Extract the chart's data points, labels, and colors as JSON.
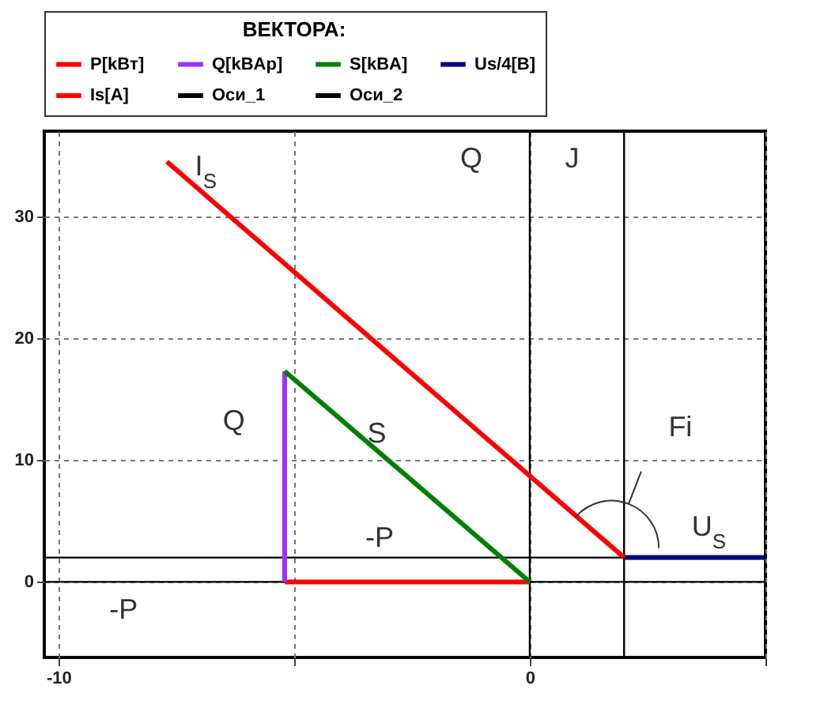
{
  "chart_data": {
    "type": "line",
    "legend_title": "ВЕКТОРА:",
    "xlim": [
      -10.3,
      5
    ],
    "ylim": [
      -6.2,
      37
    ],
    "xticks": [
      -10,
      {
        "value": -5,
        "label": null
      },
      0,
      {
        "value": 5,
        "label": null
      }
    ],
    "yticks": [
      0,
      10,
      20,
      30
    ],
    "grid": true,
    "legend": "top",
    "series": [
      {
        "name": "P[kBт]",
        "color": "#ff0000",
        "x": [
          -5.2,
          0
        ],
        "values": [
          0,
          0
        ]
      },
      {
        "name": "Q[kBAp]",
        "color": "#9933ff",
        "x": [
          -5.2,
          -5.2
        ],
        "values": [
          0,
          17.3
        ]
      },
      {
        "name": "S[kBA]",
        "color": "#008000",
        "x": [
          -5.2,
          0
        ],
        "values": [
          17.3,
          0
        ]
      },
      {
        "name": "Us/4[B]",
        "color": "#000080",
        "x": [
          2,
          5
        ],
        "values": [
          2,
          2
        ]
      },
      {
        "name": "Is[A]",
        "color": "#ff0000",
        "x": [
          2,
          -7.7
        ],
        "values": [
          2,
          34.5
        ]
      },
      {
        "name": "Оси_1",
        "color": "#000000",
        "x": [
          -10.3,
          5,
          0,
          0,
          0
        ],
        "values": [
          0,
          0,
          0,
          -6.2,
          37
        ]
      },
      {
        "name": "Оси_2",
        "color": "#000000",
        "x": [
          -10.3,
          2,
          2,
          2
        ],
        "values": [
          2,
          2,
          -6.2,
          37
        ]
      }
    ],
    "annotations": [
      "I$_{S}$",
      "Q",
      "S",
      "-P",
      "-P",
      "Q",
      "J",
      "Fi",
      {
        "text": "U$_{S}$",
        "x": 3.8,
        "y": 2
      }
    ]
  }
}
